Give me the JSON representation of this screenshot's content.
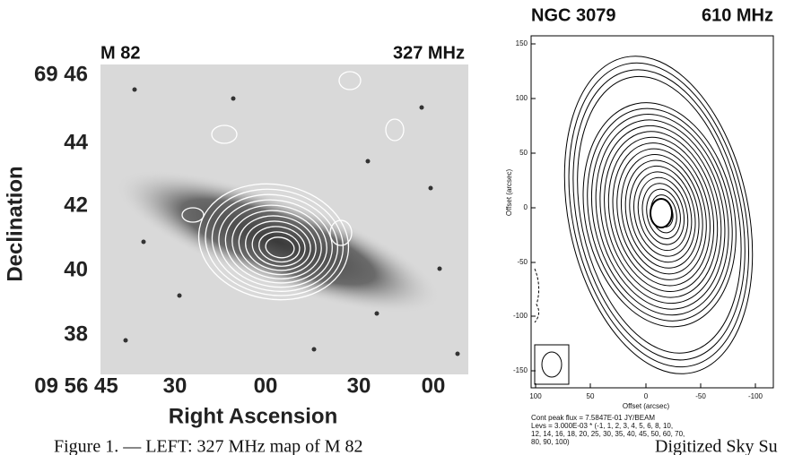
{
  "left_panel": {
    "title": "M 82",
    "frequency": "327 MHz",
    "y_label": "Declination",
    "y_ticks": [
      "69 46",
      "44",
      "42",
      "40",
      "38"
    ],
    "x_label": "Right Ascension",
    "x_ticks": [
      "09 56 45",
      "30",
      "00",
      "30",
      "00"
    ]
  },
  "right_panel": {
    "title": "NGC 3079",
    "frequency": "610 MHz",
    "y_label": "Offset (arcsec)",
    "x_label": "Offset (arcsec)",
    "y_ticks": [
      "150",
      "100",
      "50",
      "0",
      "-50",
      "-100",
      "-150"
    ],
    "x_ticks": [
      "100",
      "50",
      "0",
      "-50",
      "-100"
    ],
    "notes": [
      "Cont peak flux =  7.5847E-01 JY/BEAM",
      "Levs = 3.000E-03 * (-1, 1, 2, 3, 4, 5, 6, 8, 10,",
      "12, 14, 16, 18, 20, 25, 30, 35, 40, 45, 50, 60, 70,",
      "80, 90, 100)"
    ]
  },
  "caption": {
    "start": "Figure 1. — LEFT: 327 MHz map of M 82",
    "end": "Digitized Sky Su"
  }
}
